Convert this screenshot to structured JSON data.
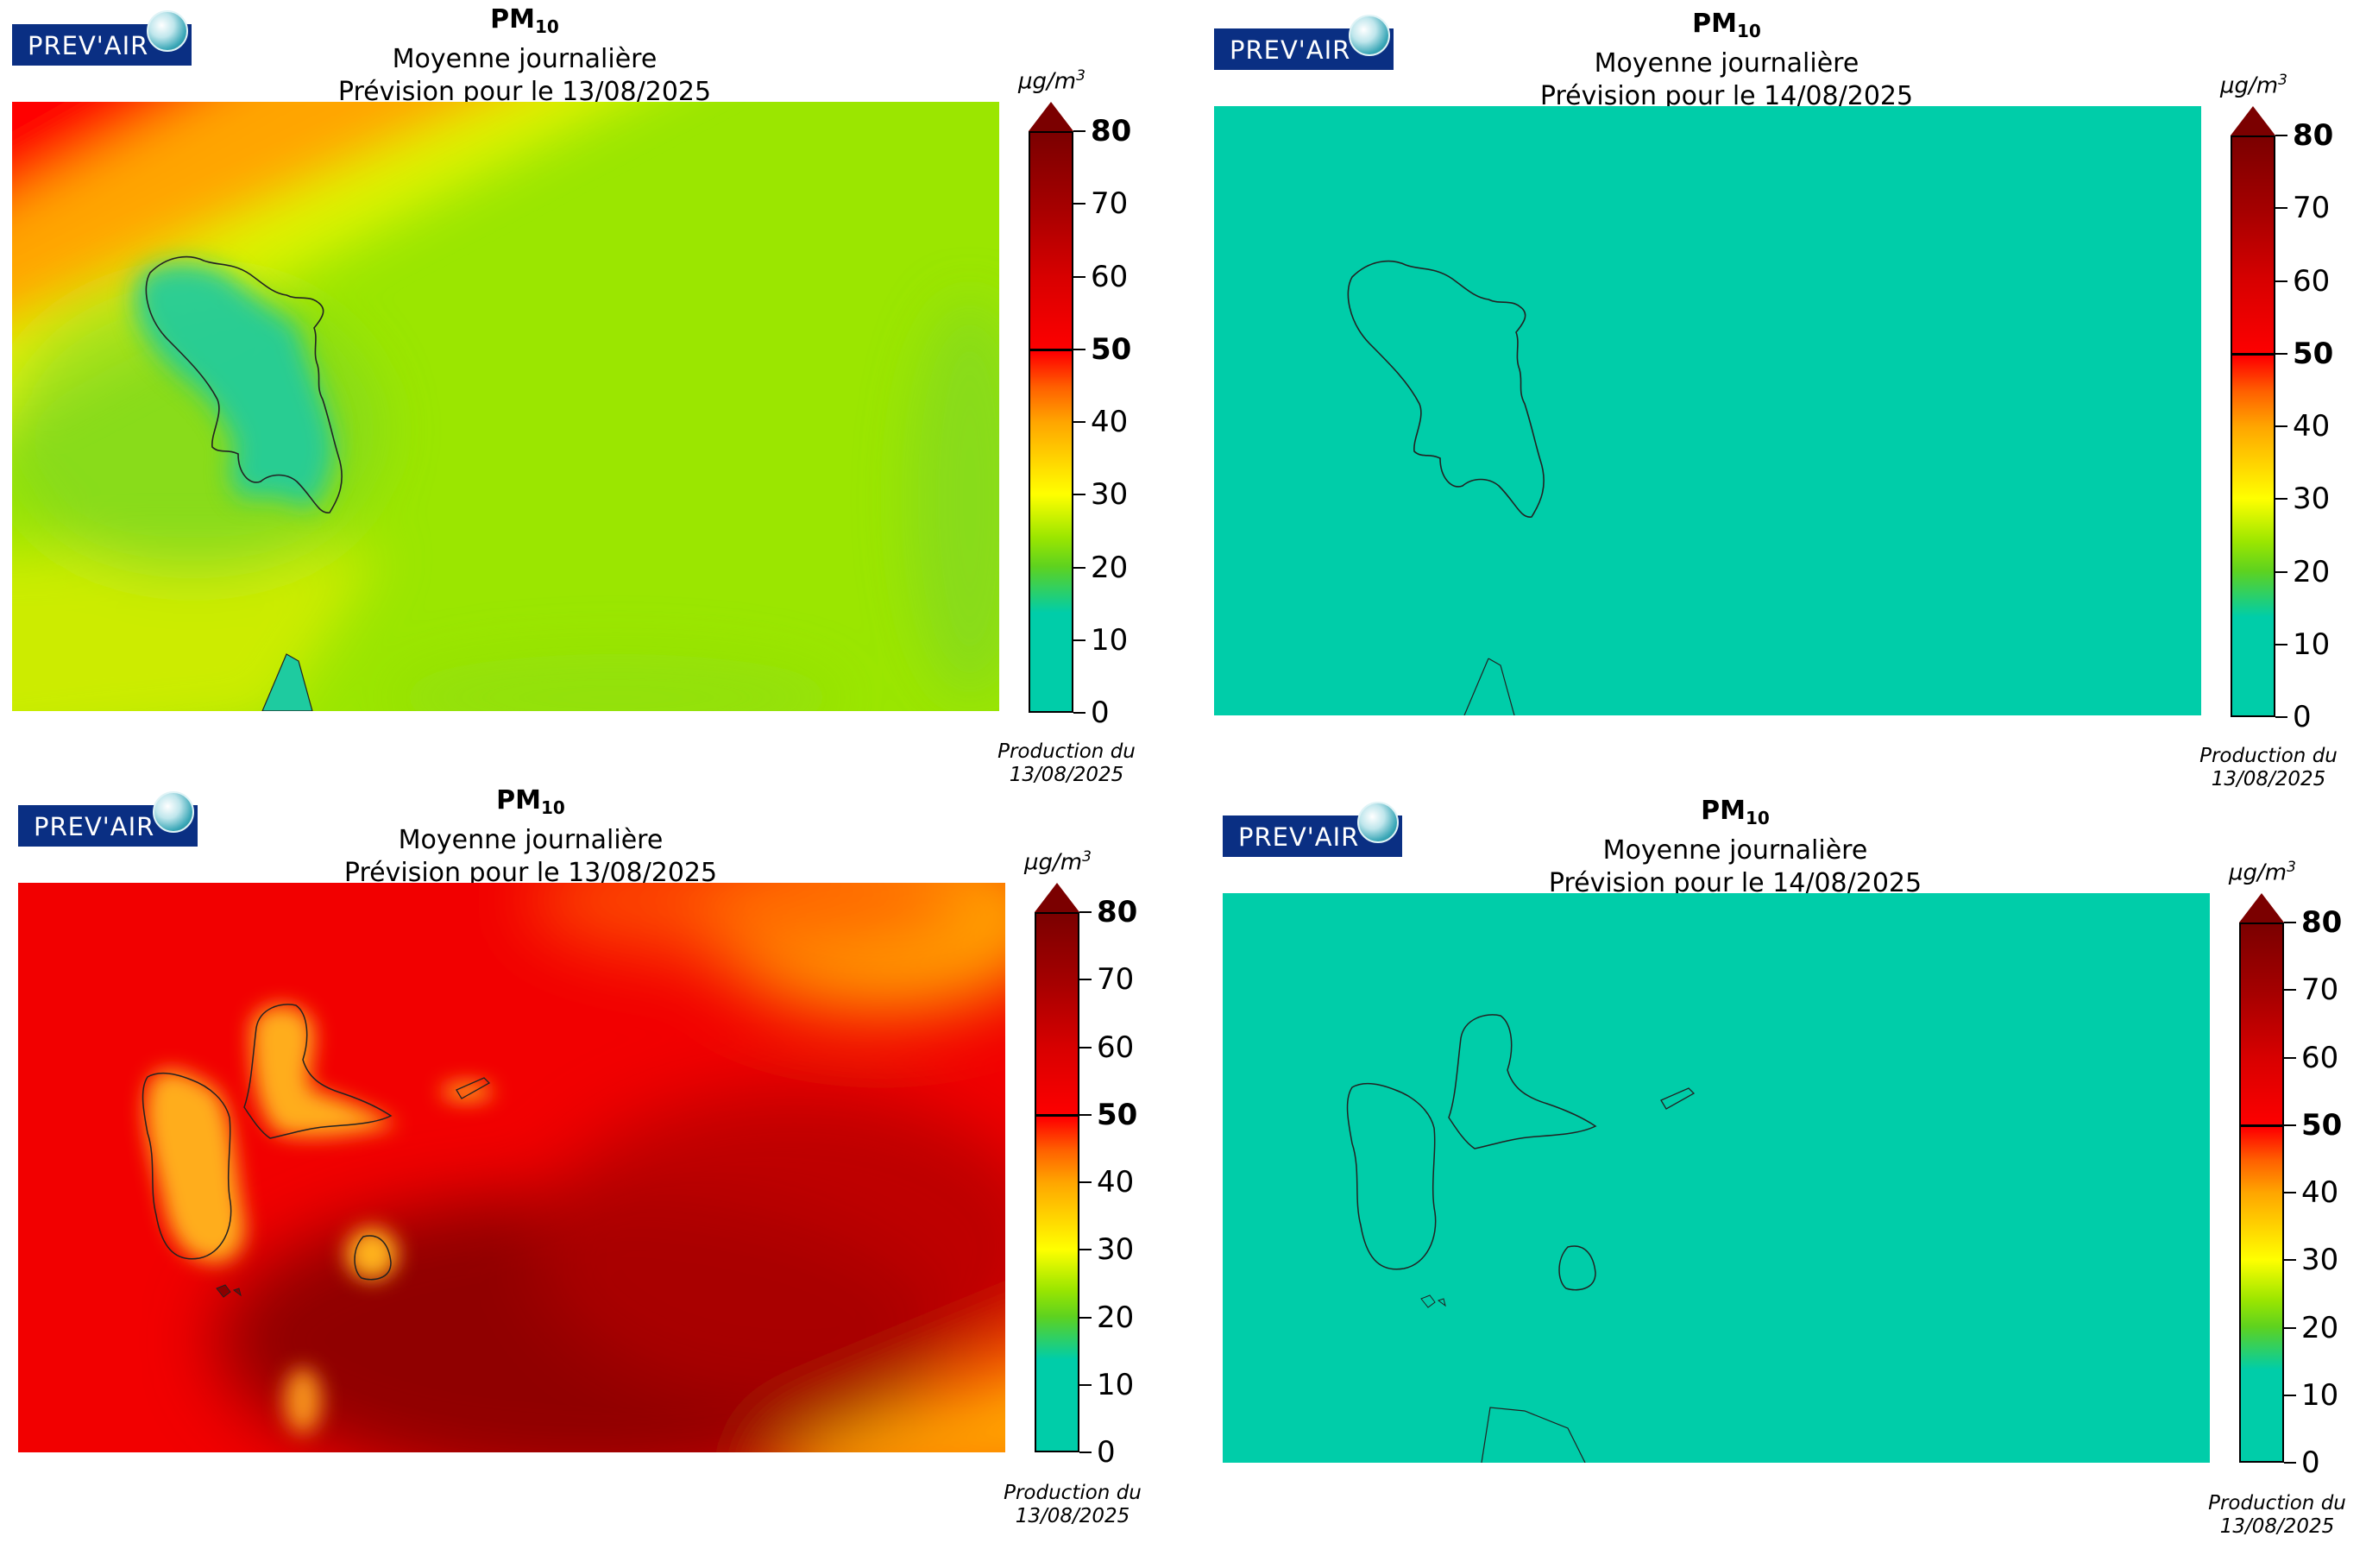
{
  "brand": "PREV'AIR",
  "pollutant": "PM",
  "pollutant_sub": "10",
  "unit_main": "µg/m",
  "unit_exp": "3",
  "ticks": [
    {
      "value": 80,
      "label": "80",
      "bold": true
    },
    {
      "value": 70,
      "label": "70",
      "bold": false
    },
    {
      "value": 60,
      "label": "60",
      "bold": false
    },
    {
      "value": 50,
      "label": "50",
      "bold": true
    },
    {
      "value": 40,
      "label": "40",
      "bold": false
    },
    {
      "value": 30,
      "label": "30",
      "bold": false
    },
    {
      "value": 20,
      "label": "20",
      "bold": false
    },
    {
      "value": 10,
      "label": "10",
      "bold": false
    },
    {
      "value": 0,
      "label": "0",
      "bold": false
    }
  ],
  "colors": {
    "cyan": "#00cda9",
    "green": "#5ed21f",
    "lime": "#9be600",
    "yellow": "#ffff00",
    "orange": "#ffa500",
    "red": "#ff0000",
    "darkred": "#7b0000",
    "brand_blue": "#0a2f83"
  },
  "panels": [
    {
      "id": "martinique-j0",
      "subtitle": "Moyenne journalière",
      "forecast": "Prévision pour le 13/08/2025",
      "production_label": "Production du",
      "production_date": "13/08/2025"
    },
    {
      "id": "martinique-j1",
      "subtitle": "Moyenne journalière",
      "forecast": "Prévision pour le 14/08/2025",
      "production_label": "Production du",
      "production_date": "13/08/2025"
    },
    {
      "id": "guadeloupe-j0",
      "subtitle": "Moyenne journalière",
      "forecast": "Prévision pour le 13/08/2025",
      "production_label": "Production du",
      "production_date": "13/08/2025"
    },
    {
      "id": "guadeloupe-j1",
      "subtitle": "Moyenne journalière",
      "forecast": "Prévision pour le 14/08/2025",
      "production_label": "Production du",
      "production_date": "13/08/2025"
    }
  ]
}
